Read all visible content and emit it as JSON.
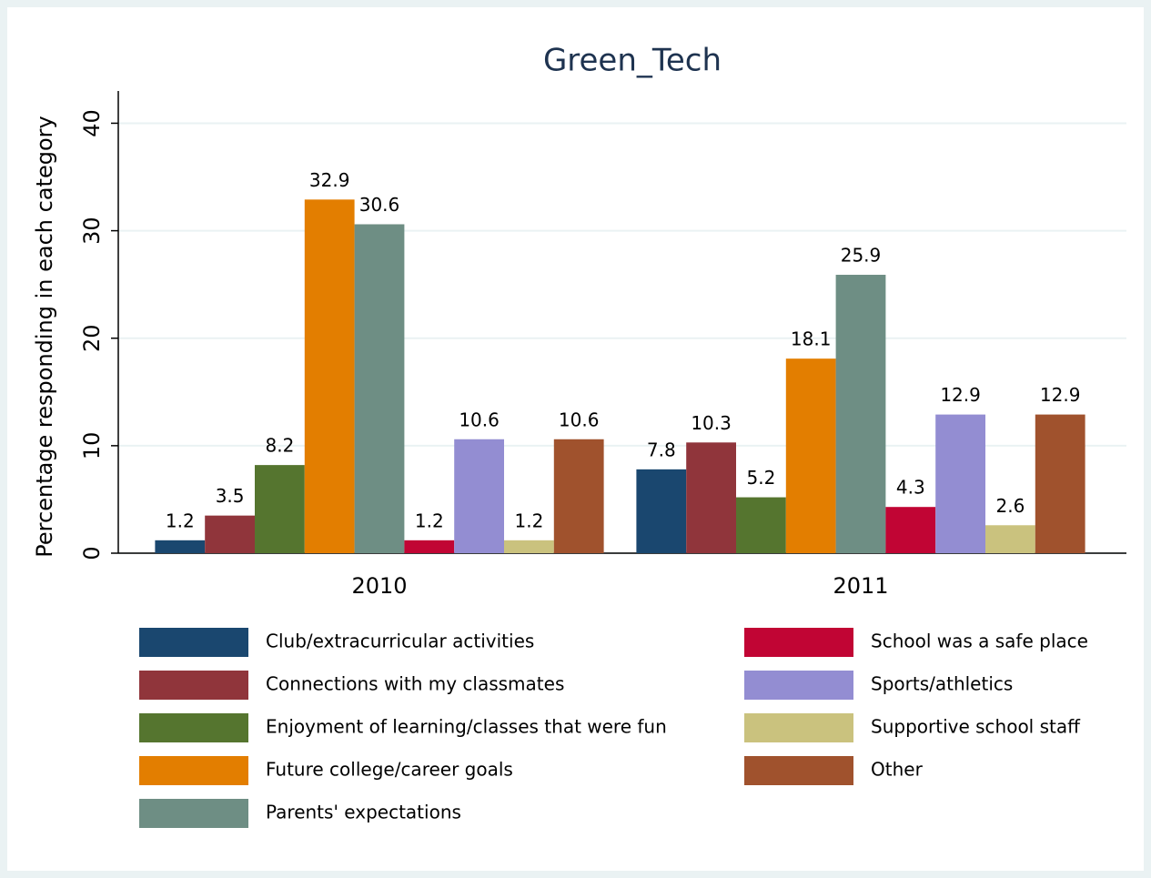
{
  "chart_data": {
    "type": "bar",
    "title": "Green_Tech",
    "y_label": "Percentage responding in each category",
    "categories": [
      "2010",
      "2011"
    ],
    "series": [
      {
        "name": "Club/extracurricular activities",
        "color": "#1a476f",
        "values": [
          1.2,
          7.8
        ]
      },
      {
        "name": "Connections with my classmates",
        "color": "#90353b",
        "values": [
          3.5,
          10.3
        ]
      },
      {
        "name": "Enjoyment of learning/classes that were fun",
        "color": "#55752f",
        "values": [
          8.2,
          5.2
        ]
      },
      {
        "name": "Future college/career goals",
        "color": "#e37e00",
        "values": [
          32.9,
          18.1
        ]
      },
      {
        "name": "Parents' expectations",
        "color": "#6e8e84",
        "values": [
          30.6,
          25.9
        ]
      },
      {
        "name": "School was a safe place",
        "color": "#c10534",
        "values": [
          1.2,
          4.3
        ]
      },
      {
        "name": "Sports/athletics",
        "color": "#938dd2",
        "values": [
          10.6,
          12.9
        ]
      },
      {
        "name": "Supportive school staff",
        "color": "#cac27e",
        "values": [
          1.2,
          2.6
        ]
      },
      {
        "name": "Other",
        "color": "#a0522d",
        "values": [
          10.6,
          12.9
        ]
      }
    ],
    "ylim": [
      0,
      43
    ],
    "yticks": [
      0,
      10,
      20,
      30,
      40
    ],
    "grid": true
  }
}
